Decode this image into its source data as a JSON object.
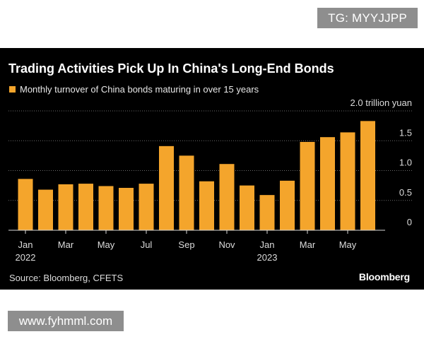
{
  "watermarks": {
    "top": "TG: MYYJJPP",
    "bottom": "www.fyhmml.com"
  },
  "chart_data": {
    "type": "bar",
    "title": "Trading Activities Pick Up In China's Long-End Bonds",
    "legend": [
      "Monthly turnover of China bonds maturing in over 15 years"
    ],
    "unit_label": "2.0 trillion yuan",
    "ylim": [
      0,
      2.0
    ],
    "yticks": [
      "0",
      "0.5",
      "1.0",
      "1.5"
    ],
    "grid": true,
    "series": [
      {
        "name": "Monthly turnover of China bonds maturing in over 15 years",
        "color": "#f4a52c",
        "values": [
          0.86,
          0.68,
          0.77,
          0.78,
          0.74,
          0.71,
          0.78,
          1.41,
          1.25,
          0.82,
          1.11,
          0.75,
          0.59,
          0.83,
          1.48,
          1.56,
          1.64,
          1.83
        ]
      }
    ],
    "categories": [
      "Jan 2022",
      "Feb 2022",
      "Mar 2022",
      "Apr 2022",
      "May 2022",
      "Jun 2022",
      "Jul 2022",
      "Aug 2022",
      "Sep 2022",
      "Oct 2022",
      "Nov 2022",
      "Dec 2022",
      "Jan 2023",
      "Feb 2023",
      "Mar 2023",
      "Apr 2023",
      "May 2023",
      "Jun 2023"
    ],
    "xtick_labels": [
      {
        "index": 0,
        "label": "Jan",
        "sub": "2022"
      },
      {
        "index": 2,
        "label": "Mar"
      },
      {
        "index": 4,
        "label": "May"
      },
      {
        "index": 6,
        "label": "Jul"
      },
      {
        "index": 8,
        "label": "Sep"
      },
      {
        "index": 10,
        "label": "Nov"
      },
      {
        "index": 12,
        "label": "Jan",
        "sub": "2023"
      },
      {
        "index": 14,
        "label": "Mar"
      },
      {
        "index": 16,
        "label": "May"
      }
    ],
    "source": "Source: Bloomberg, CFETS",
    "brand": "Bloomberg"
  }
}
